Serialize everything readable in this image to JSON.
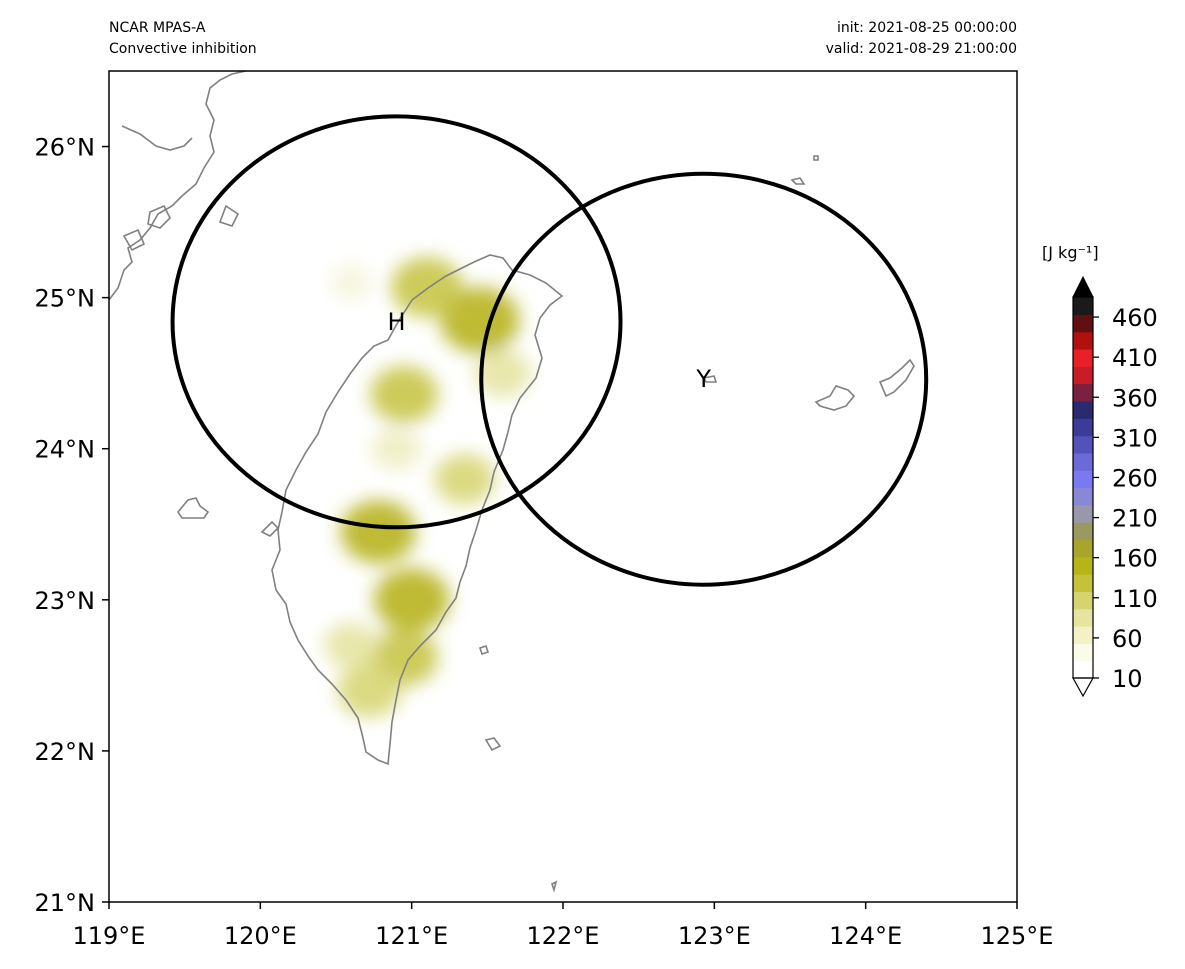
{
  "header": {
    "model": "NCAR MPAS-A",
    "field": "Convective inhibition",
    "init": "init: 2021-08-25 00:00:00",
    "valid": "valid: 2021-08-29 21:00:00"
  },
  "map": {
    "lon_range": [
      119,
      125
    ],
    "lat_range": [
      21,
      26.5
    ],
    "lon_ticks": [
      119,
      120,
      121,
      122,
      123,
      124,
      125
    ],
    "lon_tick_labels": [
      "119°E",
      "120°E",
      "121°E",
      "122°E",
      "123°E",
      "124°E",
      "125°E"
    ],
    "lat_ticks": [
      21,
      22,
      23,
      24,
      25,
      26
    ],
    "lat_tick_labels": [
      "21°N",
      "22°N",
      "23°N",
      "24°N",
      "25°N",
      "26°N"
    ],
    "coastline_color": "#808080",
    "markers": [
      {
        "label": "H",
        "lon": 120.9,
        "lat": 24.84,
        "radius_lon": 1.48,
        "radius_lat": 1.36
      },
      {
        "label": "Y",
        "lon": 122.93,
        "lat": 24.46,
        "radius_lon": 1.47,
        "radius_lat": 1.36
      }
    ],
    "field_blobs": [
      {
        "lon": 121.45,
        "lat": 24.85,
        "level": 120
      },
      {
        "lon": 121.1,
        "lat": 25.07,
        "level": 100
      },
      {
        "lon": 120.95,
        "lat": 24.36,
        "level": 90
      },
      {
        "lon": 120.78,
        "lat": 23.45,
        "level": 110
      },
      {
        "lon": 121.0,
        "lat": 23.0,
        "level": 110
      },
      {
        "lon": 120.95,
        "lat": 22.62,
        "level": 90
      },
      {
        "lon": 120.72,
        "lat": 22.4,
        "level": 80
      },
      {
        "lon": 121.35,
        "lat": 23.8,
        "level": 70
      },
      {
        "lon": 121.6,
        "lat": 24.5,
        "level": 60
      },
      {
        "lon": 120.6,
        "lat": 25.1,
        "level": 25
      },
      {
        "lon": 120.9,
        "lat": 24.0,
        "level": 45
      },
      {
        "lon": 120.6,
        "lat": 22.7,
        "level": 55
      }
    ]
  },
  "colorbar": {
    "unit": "[J kg⁻¹]",
    "tick_values": [
      10,
      60,
      110,
      160,
      210,
      260,
      310,
      360,
      410,
      460
    ],
    "tick_labels": [
      "10",
      "60",
      "110",
      "160",
      "210",
      "260",
      "310",
      "360",
      "410",
      "460"
    ],
    "range": [
      10,
      485
    ],
    "colors": [
      "#ffffff",
      "#fbfbe9",
      "#f2f1c8",
      "#e6e59f",
      "#d6d470",
      "#c5c23a",
      "#b7b415",
      "#a8a62a",
      "#9a9a60",
      "#9898a8",
      "#8888d6",
      "#7a7af0",
      "#6a6ad8",
      "#5252b8",
      "#3c3c98",
      "#2a2a70",
      "#7a2040",
      "#c81c28",
      "#ea2028",
      "#b01010",
      "#601010",
      "#1a1a1a"
    ]
  }
}
